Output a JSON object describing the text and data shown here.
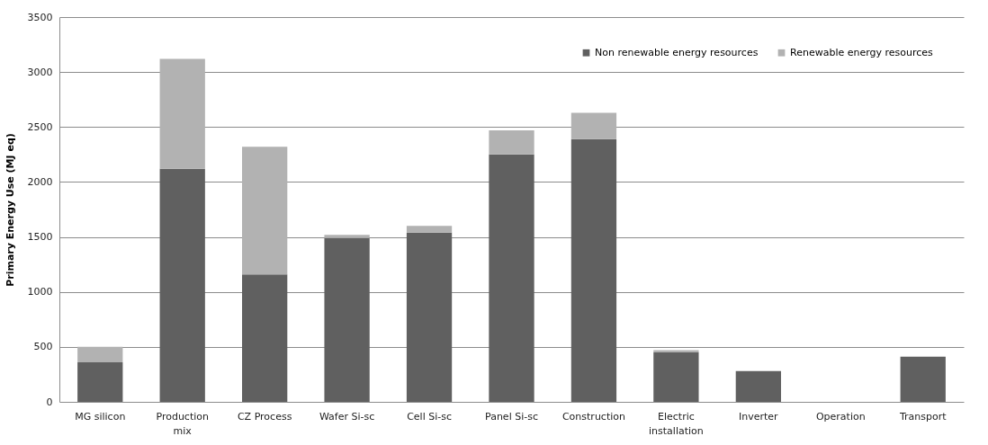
{
  "chart_data": {
    "type": "bar",
    "stacked": true,
    "ylabel": "Primary Energy Use (MJ eq)",
    "categories": [
      "MG silicon",
      "Production mix",
      "CZ Process",
      "Wafer Si-sc",
      "Cell Si-sc",
      "Panel Si-sc",
      "Construction",
      "Electric installation",
      "Inverter",
      "Operation",
      "Transport"
    ],
    "series": [
      {
        "name": "Non renewable energy resources",
        "color": "#606060",
        "values": [
          360,
          2120,
          1160,
          1490,
          1540,
          2250,
          2390,
          450,
          280,
          0,
          410
        ]
      },
      {
        "name": "Renewable energy resources",
        "color": "#b2b2b2",
        "values": [
          140,
          1000,
          1160,
          30,
          60,
          220,
          240,
          20,
          0,
          0,
          0
        ]
      }
    ],
    "ylim": [
      0,
      3500
    ],
    "yticks": [
      0,
      500,
      1000,
      1500,
      2000,
      2500,
      3000,
      3500
    ],
    "grid": "y",
    "legend": "top right"
  }
}
